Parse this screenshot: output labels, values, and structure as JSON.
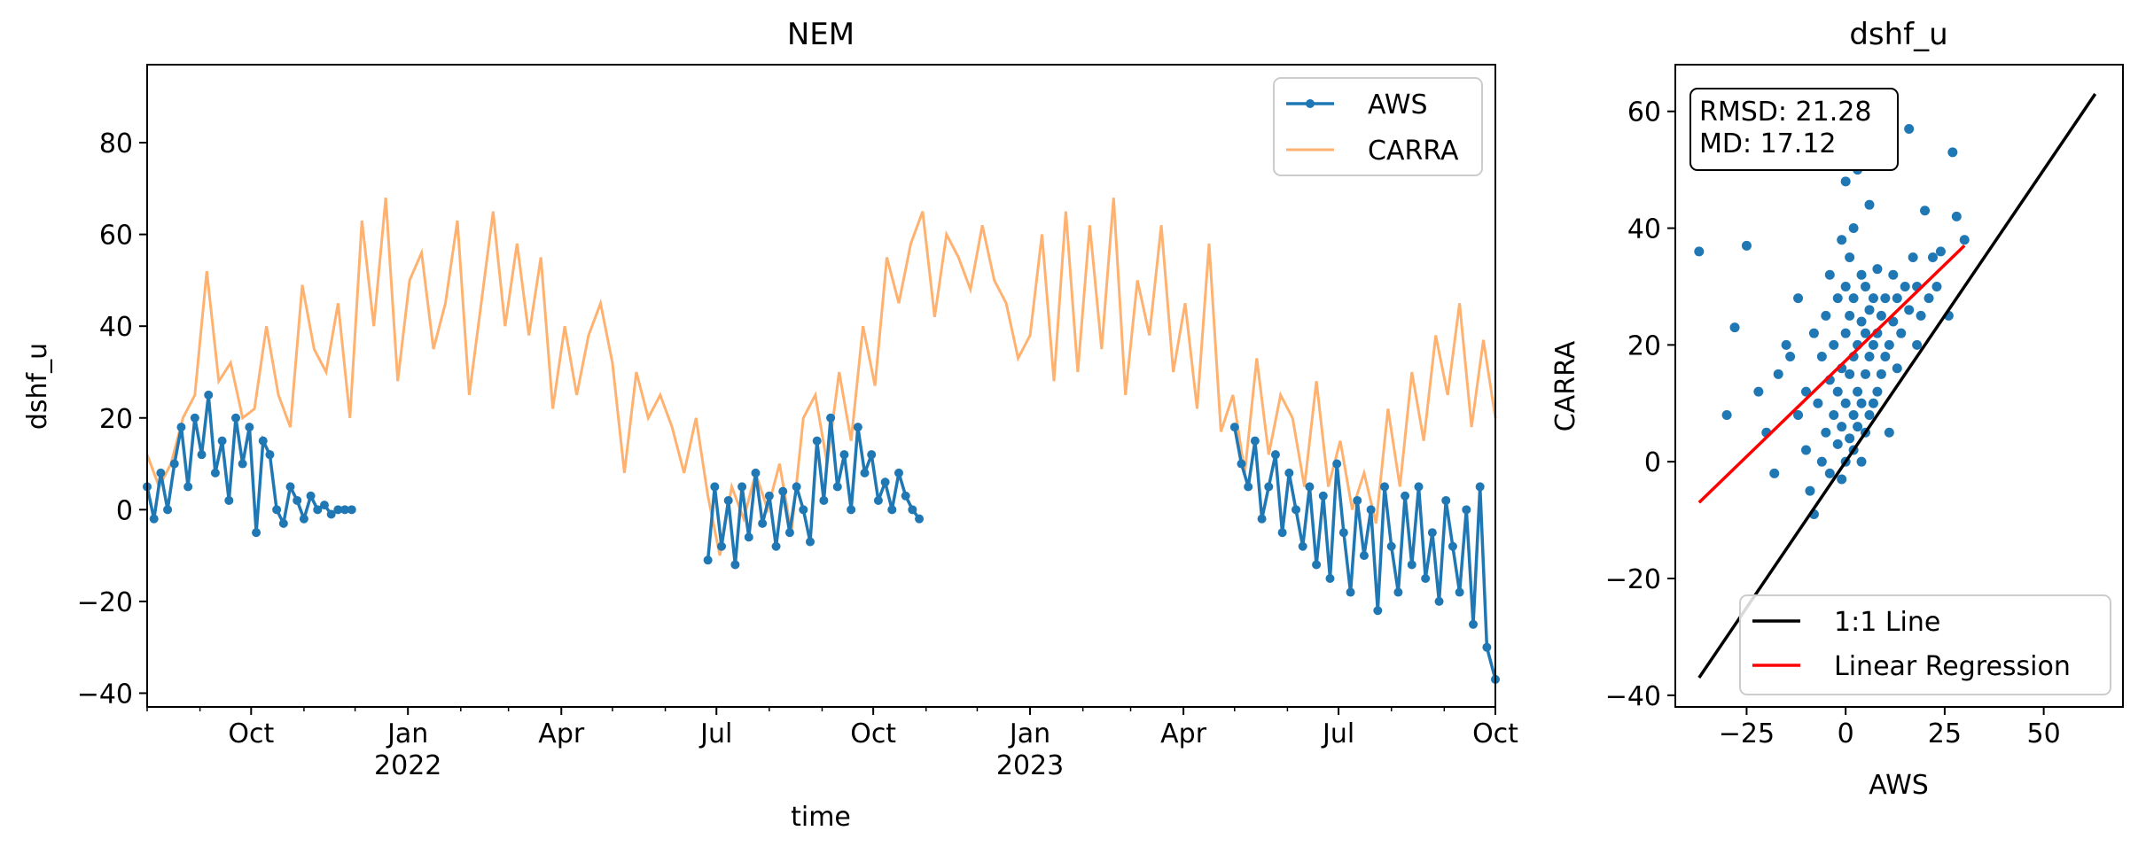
{
  "chart_data": [
    {
      "type": "line",
      "title": "NEM",
      "xlabel": "time",
      "ylabel": "dshf_u",
      "x_ticks": [
        {
          "date": "2021-10-01",
          "label": "Oct",
          "year": ""
        },
        {
          "date": "2022-01-01",
          "label": "Jan",
          "year": "2022"
        },
        {
          "date": "2022-04-01",
          "label": "Apr",
          "year": ""
        },
        {
          "date": "2022-07-01",
          "label": "Jul",
          "year": ""
        },
        {
          "date": "2022-10-01",
          "label": "Oct",
          "year": ""
        },
        {
          "date": "2023-01-01",
          "label": "Jan",
          "year": "2023"
        },
        {
          "date": "2023-04-01",
          "label": "Apr",
          "year": ""
        },
        {
          "date": "2023-07-01",
          "label": "Jul",
          "year": ""
        },
        {
          "date": "2023-10-01",
          "label": "Oct",
          "year": ""
        }
      ],
      "xlim": [
        "2021-08-01",
        "2023-10-01"
      ],
      "ylim": [
        -43,
        97
      ],
      "y_ticks": [
        -40,
        -20,
        0,
        20,
        40,
        60,
        80
      ],
      "legend_position": "upper right",
      "grid": false,
      "series": [
        {
          "name": "CARRA",
          "color": "#ffa557",
          "x": [
            "2021-08-01",
            "2021-08-08",
            "2021-08-15",
            "2021-08-22",
            "2021-08-29",
            "2021-09-05",
            "2021-09-12",
            "2021-09-19",
            "2021-09-26",
            "2021-10-03",
            "2021-10-10",
            "2021-10-17",
            "2021-10-24",
            "2021-10-31",
            "2021-11-07",
            "2021-11-14",
            "2021-11-21",
            "2021-11-28",
            "2021-12-05",
            "2021-12-12",
            "2021-12-19",
            "2021-12-26",
            "2022-01-02",
            "2022-01-09",
            "2022-01-16",
            "2022-01-23",
            "2022-01-30",
            "2022-02-06",
            "2022-02-13",
            "2022-02-20",
            "2022-02-27",
            "2022-03-06",
            "2022-03-13",
            "2022-03-20",
            "2022-03-27",
            "2022-04-03",
            "2022-04-10",
            "2022-04-17",
            "2022-04-24",
            "2022-05-01",
            "2022-05-08",
            "2022-05-15",
            "2022-05-22",
            "2022-05-29",
            "2022-06-05",
            "2022-06-12",
            "2022-06-19",
            "2022-06-26",
            "2022-07-03",
            "2022-07-10",
            "2022-07-17",
            "2022-07-24",
            "2022-07-31",
            "2022-08-07",
            "2022-08-14",
            "2022-08-21",
            "2022-08-28",
            "2022-09-04",
            "2022-09-11",
            "2022-09-18",
            "2022-09-25",
            "2022-10-02",
            "2022-10-09",
            "2022-10-16",
            "2022-10-23",
            "2022-10-30",
            "2022-11-06",
            "2022-11-13",
            "2022-11-20",
            "2022-11-27",
            "2022-12-04",
            "2022-12-11",
            "2022-12-18",
            "2022-12-25",
            "2023-01-01",
            "2023-01-08",
            "2023-01-15",
            "2023-01-22",
            "2023-01-29",
            "2023-02-05",
            "2023-02-12",
            "2023-02-19",
            "2023-02-26",
            "2023-03-05",
            "2023-03-12",
            "2023-03-19",
            "2023-03-26",
            "2023-04-02",
            "2023-04-09",
            "2023-04-16",
            "2023-04-23",
            "2023-04-30",
            "2023-05-07",
            "2023-05-14",
            "2023-05-21",
            "2023-05-28",
            "2023-06-04",
            "2023-06-11",
            "2023-06-18",
            "2023-06-25",
            "2023-07-02",
            "2023-07-09",
            "2023-07-16",
            "2023-07-23",
            "2023-07-30",
            "2023-08-06",
            "2023-08-13",
            "2023-08-20",
            "2023-08-27",
            "2023-09-03",
            "2023-09-10",
            "2023-09-17",
            "2023-09-24",
            "2023-10-01"
          ],
          "y": [
            12,
            5,
            10,
            20,
            25,
            52,
            28,
            32,
            20,
            22,
            40,
            25,
            18,
            49,
            35,
            30,
            45,
            20,
            63,
            40,
            68,
            28,
            50,
            56,
            35,
            45,
            63,
            25,
            45,
            65,
            40,
            58,
            38,
            55,
            22,
            40,
            25,
            38,
            45,
            32,
            8,
            30,
            20,
            25,
            18,
            8,
            20,
            3,
            -10,
            5,
            -2,
            8,
            0,
            10,
            -5,
            20,
            25,
            10,
            30,
            15,
            40,
            27,
            55,
            45,
            58,
            65,
            42,
            60,
            55,
            48,
            62,
            50,
            45,
            33,
            38,
            60,
            28,
            65,
            30,
            62,
            35,
            68,
            25,
            50,
            38,
            62,
            30,
            45,
            22,
            58,
            17,
            25,
            8,
            33,
            12,
            25,
            20,
            5,
            28,
            5,
            15,
            0,
            8,
            -3,
            22,
            5,
            30,
            15,
            38,
            25,
            45,
            18,
            37,
            20
          ]
        },
        {
          "name": "AWS",
          "color": "#1f77b4",
          "marker": "circle",
          "x": [
            "2021-08-01",
            "2021-08-05",
            "2021-08-09",
            "2021-08-13",
            "2021-08-17",
            "2021-08-21",
            "2021-08-25",
            "2021-08-29",
            "2021-09-02",
            "2021-09-06",
            "2021-09-10",
            "2021-09-14",
            "2021-09-18",
            "2021-09-22",
            "2021-09-26",
            "2021-09-30",
            "2021-10-04",
            "2021-10-08",
            "2021-10-12",
            "2021-10-16",
            "2021-10-20",
            "2021-10-24",
            "2021-10-28",
            "2021-11-01",
            "2021-11-05",
            "2021-11-09",
            "2021-11-13",
            "2021-11-17",
            "2021-11-21",
            "2021-11-25",
            "2021-11-29",
            null,
            "2022-06-26",
            "2022-06-30",
            "2022-07-04",
            "2022-07-08",
            "2022-07-12",
            "2022-07-16",
            "2022-07-20",
            "2022-07-24",
            "2022-07-28",
            "2022-08-01",
            "2022-08-05",
            "2022-08-09",
            "2022-08-13",
            "2022-08-17",
            "2022-08-21",
            "2022-08-25",
            "2022-08-29",
            "2022-09-02",
            "2022-09-06",
            "2022-09-10",
            "2022-09-14",
            "2022-09-18",
            "2022-09-22",
            "2022-09-26",
            "2022-09-30",
            "2022-10-04",
            "2022-10-08",
            "2022-10-12",
            "2022-10-16",
            "2022-10-20",
            "2022-10-24",
            "2022-10-28",
            null,
            "2023-05-01",
            "2023-05-05",
            "2023-05-09",
            "2023-05-13",
            "2023-05-17",
            "2023-05-21",
            "2023-05-25",
            "2023-05-29",
            "2023-06-02",
            "2023-06-06",
            "2023-06-10",
            "2023-06-14",
            "2023-06-18",
            "2023-06-22",
            "2023-06-26",
            "2023-06-30",
            "2023-07-04",
            "2023-07-08",
            "2023-07-12",
            "2023-07-16",
            "2023-07-20",
            "2023-07-24",
            "2023-07-28",
            "2023-08-01",
            "2023-08-05",
            "2023-08-09",
            "2023-08-13",
            "2023-08-17",
            "2023-08-21",
            "2023-08-25",
            "2023-08-29",
            "2023-09-02",
            "2023-09-06",
            "2023-09-10",
            "2023-09-14",
            "2023-09-18",
            "2023-09-22",
            "2023-09-26",
            "2023-10-01"
          ],
          "y": [
            5,
            -2,
            8,
            0,
            10,
            18,
            5,
            20,
            12,
            25,
            8,
            15,
            2,
            20,
            10,
            18,
            -5,
            15,
            12,
            0,
            -3,
            5,
            2,
            -2,
            3,
            0,
            1,
            -1,
            0,
            0,
            0,
            null,
            -11,
            5,
            -8,
            2,
            -12,
            5,
            -6,
            8,
            -3,
            3,
            -8,
            4,
            -5,
            5,
            0,
            -7,
            15,
            2,
            20,
            5,
            12,
            0,
            18,
            8,
            12,
            2,
            6,
            0,
            8,
            3,
            0,
            -2,
            null,
            18,
            10,
            5,
            15,
            -2,
            5,
            12,
            -5,
            8,
            0,
            -8,
            5,
            -12,
            3,
            -15,
            10,
            -5,
            -18,
            2,
            -10,
            0,
            -22,
            5,
            -8,
            -18,
            3,
            -12,
            5,
            -15,
            -5,
            -20,
            2,
            -8,
            -18,
            0,
            -25,
            5,
            -30,
            -37
          ]
        }
      ]
    },
    {
      "type": "scatter",
      "title": "dshf_u",
      "xlabel": "AWS",
      "ylabel": "CARRA",
      "xlim": [
        -43,
        70
      ],
      "ylim": [
        -42,
        68
      ],
      "x_ticks": [
        -25,
        0,
        25,
        50
      ],
      "y_ticks": [
        -40,
        -20,
        0,
        20,
        40,
        60
      ],
      "annotation": [
        "RMSD: 21.28",
        "MD: 17.12"
      ],
      "legend_position": "lower right",
      "grid": false,
      "scatter_color": "#1f77b4",
      "points": [
        [
          -37,
          36
        ],
        [
          -30,
          8
        ],
        [
          -28,
          23
        ],
        [
          -25,
          37
        ],
        [
          -22,
          12
        ],
        [
          -20,
          5
        ],
        [
          -18,
          -2
        ],
        [
          -17,
          15
        ],
        [
          -15,
          20
        ],
        [
          -14,
          18
        ],
        [
          -12,
          8
        ],
        [
          -12,
          28
        ],
        [
          -10,
          2
        ],
        [
          -10,
          12
        ],
        [
          -9,
          -5
        ],
        [
          -8,
          -9
        ],
        [
          -8,
          22
        ],
        [
          -7,
          10
        ],
        [
          -6,
          0
        ],
        [
          -6,
          18
        ],
        [
          -5,
          5
        ],
        [
          -5,
          25
        ],
        [
          -4,
          -2
        ],
        [
          -4,
          14
        ],
        [
          -4,
          32
        ],
        [
          -3,
          8
        ],
        [
          -3,
          20
        ],
        [
          -2,
          3
        ],
        [
          -2,
          12
        ],
        [
          -2,
          28
        ],
        [
          -1,
          -3
        ],
        [
          -1,
          6
        ],
        [
          -1,
          16
        ],
        [
          -1,
          38
        ],
        [
          0,
          0
        ],
        [
          0,
          10
        ],
        [
          0,
          22
        ],
        [
          0,
          30
        ],
        [
          0,
          48
        ],
        [
          1,
          4
        ],
        [
          1,
          15
        ],
        [
          1,
          25
        ],
        [
          1,
          35
        ],
        [
          2,
          2
        ],
        [
          2,
          8
        ],
        [
          2,
          18
        ],
        [
          2,
          28
        ],
        [
          2,
          40
        ],
        [
          3,
          6
        ],
        [
          3,
          12
        ],
        [
          3,
          20
        ],
        [
          3,
          50
        ],
        [
          4,
          0
        ],
        [
          4,
          10
        ],
        [
          4,
          24
        ],
        [
          4,
          32
        ],
        [
          5,
          5
        ],
        [
          5,
          15
        ],
        [
          5,
          22
        ],
        [
          5,
          30
        ],
        [
          6,
          8
        ],
        [
          6,
          18
        ],
        [
          6,
          26
        ],
        [
          6,
          44
        ],
        [
          7,
          10
        ],
        [
          7,
          20
        ],
        [
          7,
          28
        ],
        [
          8,
          12
        ],
        [
          8,
          22
        ],
        [
          8,
          33
        ],
        [
          9,
          15
        ],
        [
          9,
          25
        ],
        [
          10,
          18
        ],
        [
          10,
          28
        ],
        [
          11,
          5
        ],
        [
          11,
          20
        ],
        [
          12,
          24
        ],
        [
          12,
          32
        ],
        [
          13,
          16
        ],
        [
          13,
          28
        ],
        [
          14,
          22
        ],
        [
          15,
          30
        ],
        [
          16,
          26
        ],
        [
          16,
          57
        ],
        [
          17,
          35
        ],
        [
          18,
          30
        ],
        [
          18,
          20
        ],
        [
          19,
          25
        ],
        [
          20,
          43
        ],
        [
          21,
          28
        ],
        [
          22,
          35
        ],
        [
          23,
          30
        ],
        [
          24,
          36
        ],
        [
          26,
          25
        ],
        [
          27,
          53
        ],
        [
          28,
          42
        ],
        [
          30,
          38
        ]
      ],
      "series": [
        {
          "name": "1:1 Line",
          "color": "#000000",
          "x": [
            -37,
            63
          ],
          "y": [
            -37,
            63
          ]
        },
        {
          "name": "Linear Regression",
          "color": "#ff0000",
          "x": [
            -37,
            30
          ],
          "y": [
            -7,
            37
          ]
        }
      ]
    }
  ]
}
